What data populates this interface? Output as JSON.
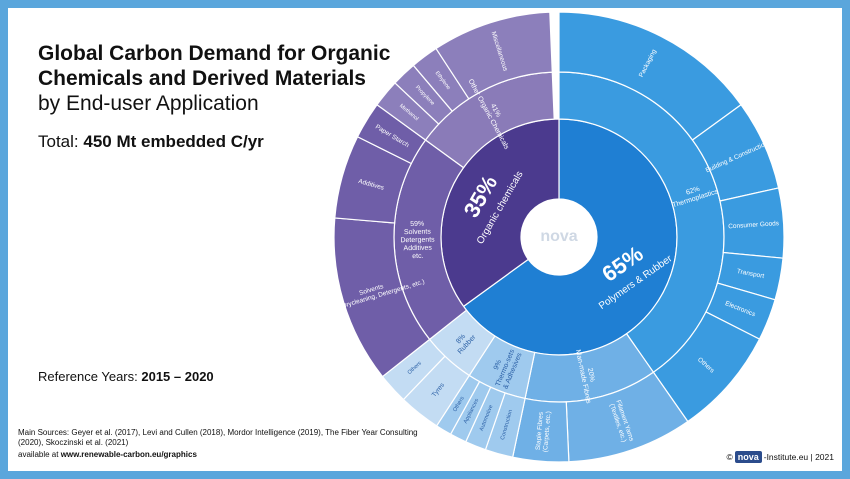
{
  "header": {
    "title": "Global Carbon Demand for Organic Chemicals and Derived Materials",
    "subtitle": "by End-user Application",
    "total_prefix": "Total: ",
    "total_value": "450 Mt embedded C/yr"
  },
  "reference": {
    "prefix": "Reference Years: ",
    "value": "2015 – 2020"
  },
  "footer": {
    "sources": "Main Sources: Geyer et al. (2017), Levi and Cullen (2018), Mordor Intelligence (2019), The Fiber Year Consulting (2020), Skoczinski et al. (2021)",
    "available_prefix": "available at ",
    "available_url": "www.renewable-carbon.eu/graphics",
    "copyright_symbol": "©",
    "logo_text": "nova",
    "copyright_suffix": "-Institute.eu | 2021",
    "center_logo": "nova"
  },
  "colors": {
    "polymers": "#1f7fd3",
    "thermoplastics": "#3a9be0",
    "organic": "#4b3a8e",
    "solvents": "#6f5ea8",
    "other_org": "#8a7bb8",
    "misc": "#8c7fbb",
    "fibres": "#6fb0e6",
    "rubber": "#c3dcf3",
    "thermosets": "#9fcaee"
  },
  "chart_data": {
    "type": "sunburst",
    "title": "Global Carbon Demand for Organic Chemicals and Derived Materials",
    "inner": [
      {
        "label_pct": "65%",
        "label": "Polymers & Rubber",
        "value": 65
      },
      {
        "label_pct": "35%",
        "label": "Organic chemicals",
        "value": 35
      }
    ],
    "middle": [
      {
        "pct": "62%",
        "name": "Thermoplastics",
        "value": 40.3
      },
      {
        "pct": "20%",
        "name": "Man-made Fibres",
        "value": 13
      },
      {
        "pct": "9%",
        "name": "Thermo-sets & Adhesives",
        "value": 5.85
      },
      {
        "pct": "8%",
        "name": "Rubber",
        "value": 5.2
      },
      {
        "pct": "59%",
        "name": "Solvents, Detergents, Additives, etc.",
        "value": 20.65
      },
      {
        "pct": "41%",
        "name": "Other Organic Chemicals",
        "value": 14.35
      }
    ],
    "outer": [
      {
        "name": "Packaging",
        "parent": "Thermoplastics",
        "value": 15
      },
      {
        "name": "Building & Construction",
        "parent": "Thermoplastics",
        "value": 6.5
      },
      {
        "name": "Consumer Goods",
        "parent": "Thermoplastics",
        "value": 5
      },
      {
        "name": "Transport",
        "parent": "Thermoplastics",
        "value": 3
      },
      {
        "name": "Electronics",
        "parent": "Thermoplastics",
        "value": 3
      },
      {
        "name": "Others",
        "parent": "Thermoplastics",
        "value": 7.8
      },
      {
        "name": "Filament Yarns",
        "sub": "(Textiles, etc.)",
        "parent": "Man-made Fibres",
        "value": 9
      },
      {
        "name": "Staple Fibres",
        "sub": "(Carpets, etc.)",
        "parent": "Man-made Fibres",
        "value": 4
      },
      {
        "name": "Construction",
        "parent": "Thermo-sets & Adhesives",
        "value": 2
      },
      {
        "name": "Automotive",
        "parent": "Thermo-sets & Adhesives",
        "value": 1.5
      },
      {
        "name": "Appliances",
        "parent": "Thermo-sets & Adhesives",
        "value": 1.2
      },
      {
        "name": "Others",
        "parent": "Thermo-sets & Adhesives",
        "value": 1.15
      },
      {
        "name": "Tyres",
        "parent": "Rubber",
        "value": 3
      },
      {
        "name": "Others",
        "parent": "Rubber",
        "value": 2.2
      },
      {
        "name": "Solvents",
        "sub": "(Paint, Drycleaning, Detergents, etc.)",
        "parent": "Solvents, Detergents, Additives, etc.",
        "value": 12
      },
      {
        "name": "Additives",
        "parent": "Solvents, Detergents, Additives, etc.",
        "value": 6
      },
      {
        "name": "Paper Starch",
        "parent": "Solvents, Detergents, Additives, etc.",
        "value": 2.65
      },
      {
        "name": "Methanol",
        "parent": "Other Organic Chemicals",
        "value": 2
      },
      {
        "name": "Propylene",
        "parent": "Other Organic Chemicals",
        "value": 1.8
      },
      {
        "name": "Ethylene",
        "parent": "Other Organic Chemicals",
        "value": 2
      },
      {
        "name": "Miscellaneous",
        "parent": "Other Organic Chemicals",
        "value": 8.55
      }
    ]
  }
}
